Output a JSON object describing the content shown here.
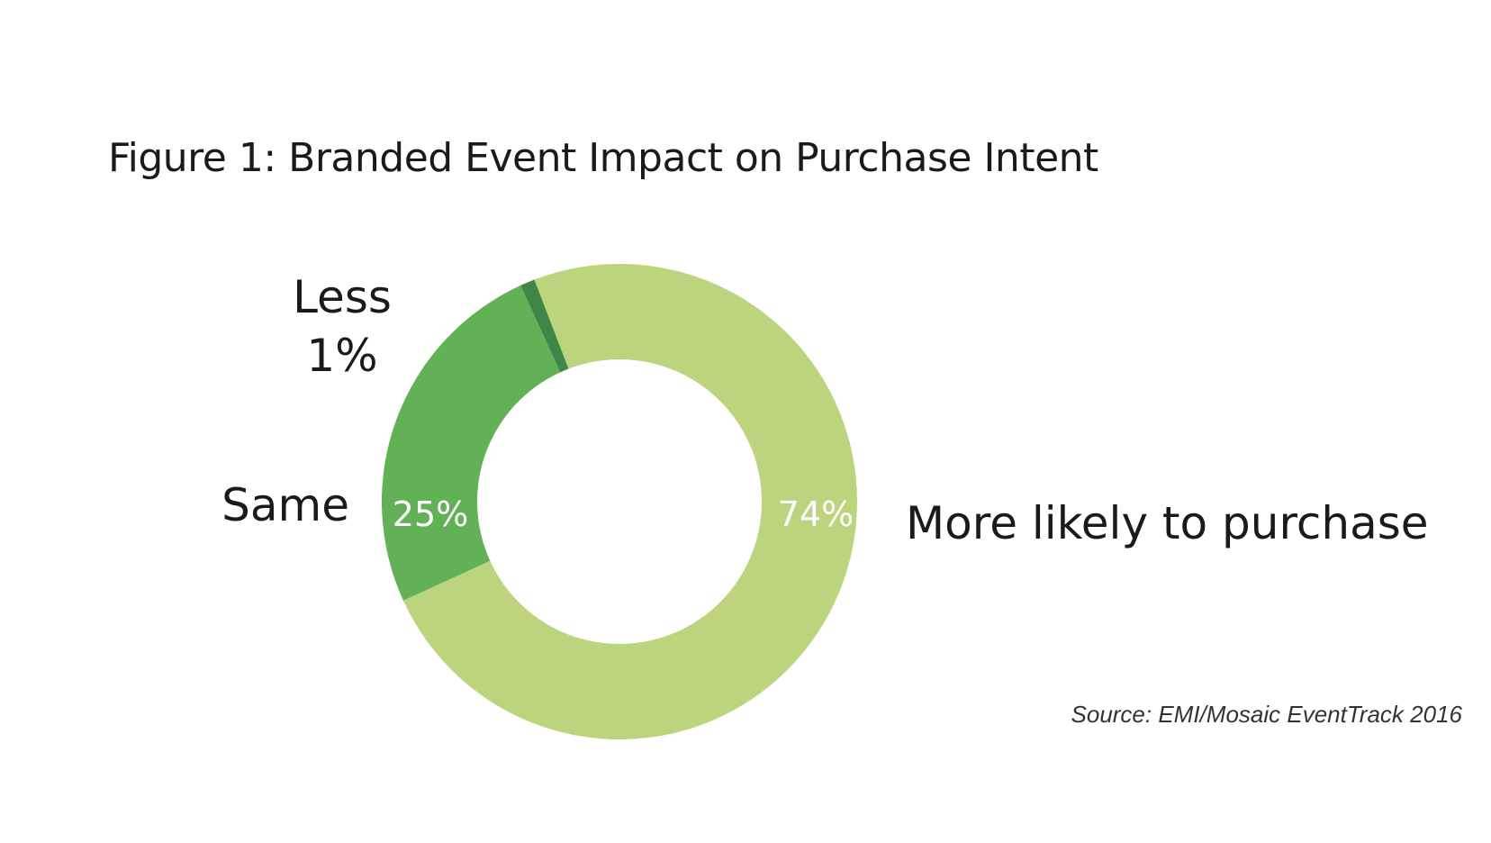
{
  "figure": {
    "title": "Figure 1: Branded Event Impact on Purchase Intent",
    "source": "Source: EMI/Mosaic EventTrack 2016"
  },
  "chart_data": {
    "type": "pie",
    "donut": true,
    "title": "Figure 1: Branded Event Impact on Purchase Intent",
    "slices": [
      {
        "label": "More likely to purchase",
        "value": 74,
        "value_label": "74%",
        "color": "#bdd47f"
      },
      {
        "label": "Same",
        "value": 25,
        "value_label": "25%",
        "color": "#62b157"
      },
      {
        "label": "Less",
        "value": 1,
        "value_label": "1%",
        "color": "#3f8746"
      }
    ],
    "legend": "none",
    "label_placement": "outside"
  }
}
